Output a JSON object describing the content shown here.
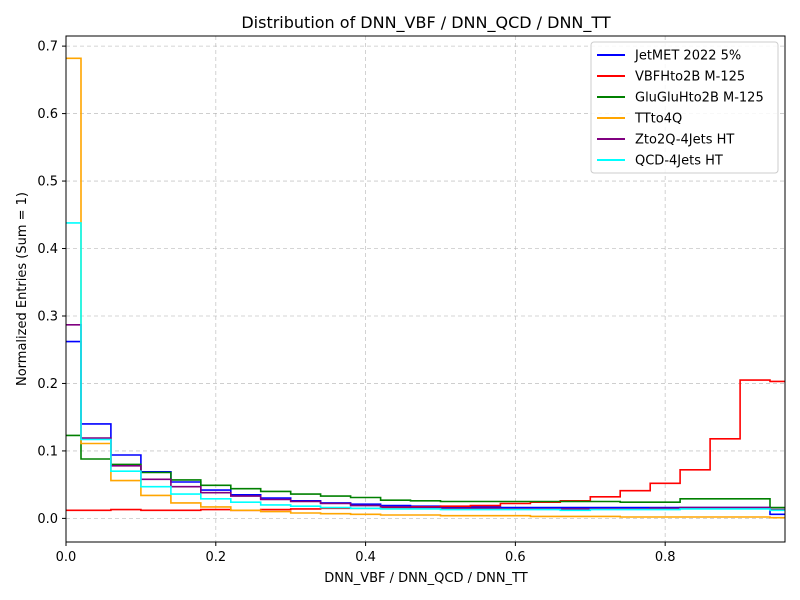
{
  "chart_data": {
    "type": "line",
    "title": "Distribution of DNN_VBF / DNN_QCD / DNN_TT",
    "xlabel": "DNN_VBF / DNN_QCD / DNN_TT",
    "ylabel": "Normalized Entries (Sum = 1)",
    "xlim": [
      0,
      0.96
    ],
    "ylim": [
      -0.035,
      0.715
    ],
    "xticks": [
      0.0,
      0.2,
      0.4,
      0.6,
      0.8
    ],
    "xtick_labels": [
      "0.0",
      "0.2",
      "0.4",
      "0.6",
      "0.8"
    ],
    "yticks": [
      0.0,
      0.1,
      0.2,
      0.3,
      0.4,
      0.5,
      0.6,
      0.7
    ],
    "ytick_labels": [
      "0.0",
      "0.1",
      "0.2",
      "0.3",
      "0.4",
      "0.5",
      "0.6",
      "0.7"
    ],
    "grid": true,
    "legend_position": "top-right",
    "bin_edges": [
      0.0,
      0.02,
      0.06,
      0.1,
      0.14,
      0.18,
      0.22,
      0.26,
      0.3,
      0.34,
      0.38,
      0.42,
      0.46,
      0.5,
      0.54,
      0.58,
      0.62,
      0.66,
      0.7,
      0.74,
      0.78,
      0.82,
      0.86,
      0.9,
      0.94,
      0.96
    ],
    "series": [
      {
        "name": "JetMET 2022 5%",
        "color": "#0000ff",
        "values": [
          0.262,
          0.14,
          0.094,
          0.069,
          0.054,
          0.042,
          0.035,
          0.03,
          0.026,
          0.023,
          0.021,
          0.019,
          0.018,
          0.017,
          0.017,
          0.016,
          0.016,
          0.016,
          0.016,
          0.016,
          0.016,
          0.016,
          0.016,
          0.016,
          0.006
        ]
      },
      {
        "name": "VBFHto2B M-125",
        "color": "#ff0000",
        "values": [
          0.012,
          0.012,
          0.013,
          0.012,
          0.012,
          0.013,
          0.012,
          0.013,
          0.014,
          0.015,
          0.015,
          0.016,
          0.017,
          0.018,
          0.019,
          0.022,
          0.024,
          0.026,
          0.032,
          0.041,
          0.052,
          0.072,
          0.118,
          0.205,
          0.203
        ]
      },
      {
        "name": "GluGluHto2B M-125",
        "color": "#008000",
        "values": [
          0.123,
          0.088,
          0.08,
          0.068,
          0.057,
          0.049,
          0.044,
          0.04,
          0.036,
          0.033,
          0.031,
          0.027,
          0.026,
          0.025,
          0.025,
          0.025,
          0.025,
          0.025,
          0.025,
          0.024,
          0.024,
          0.029,
          0.029,
          0.029,
          0.016
        ]
      },
      {
        "name": "TTto4Q",
        "color": "#ffa500",
        "values": [
          0.682,
          0.111,
          0.056,
          0.034,
          0.023,
          0.017,
          0.012,
          0.01,
          0.008,
          0.007,
          0.006,
          0.005,
          0.005,
          0.004,
          0.004,
          0.004,
          0.003,
          0.003,
          0.003,
          0.002,
          0.002,
          0.002,
          0.002,
          0.002,
          0.001
        ]
      },
      {
        "name": "Zto2Q-4Jets HT",
        "color": "#800080",
        "values": [
          0.287,
          0.119,
          0.078,
          0.058,
          0.047,
          0.038,
          0.033,
          0.028,
          0.025,
          0.022,
          0.019,
          0.017,
          0.016,
          0.015,
          0.015,
          0.014,
          0.014,
          0.014,
          0.014,
          0.014,
          0.015,
          0.016,
          0.016,
          0.016,
          0.013
        ]
      },
      {
        "name": "QCD-4Jets HT",
        "color": "#00ffff",
        "values": [
          0.438,
          0.117,
          0.07,
          0.047,
          0.036,
          0.029,
          0.024,
          0.02,
          0.018,
          0.016,
          0.015,
          0.014,
          0.014,
          0.013,
          0.013,
          0.013,
          0.013,
          0.012,
          0.013,
          0.013,
          0.013,
          0.014,
          0.014,
          0.014,
          0.012
        ]
      }
    ]
  }
}
